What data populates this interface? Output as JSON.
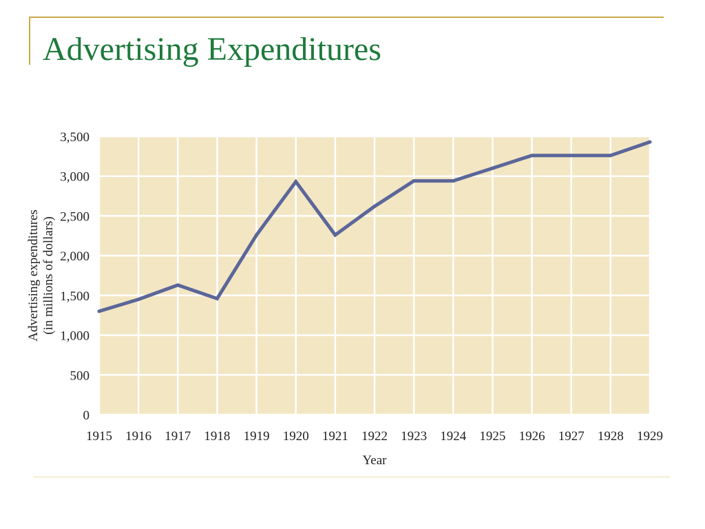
{
  "slide": {
    "title": "Advertising Expenditures"
  },
  "colors": {
    "title": "#1e7a3c",
    "frame": "#c9ab45",
    "plot_background": "#f3e6c3",
    "grid": "#ffffff",
    "line": "#5b6699"
  },
  "chart_data": {
    "type": "line",
    "title": "",
    "xlabel": "Year",
    "ylabel_lines": [
      "Advertising expenditures",
      "(in millions of dollars)"
    ],
    "x": [
      1915,
      1916,
      1917,
      1918,
      1919,
      1920,
      1921,
      1922,
      1923,
      1924,
      1925,
      1926,
      1927,
      1928,
      1929
    ],
    "x_tick_labels": [
      "1915",
      "1916",
      "1917",
      "1918",
      "1919",
      "1920",
      "1921",
      "1922",
      "1923",
      "1924",
      "1925",
      "1926",
      "1927",
      "1928",
      "1929"
    ],
    "y_ticks": [
      0,
      500,
      1000,
      1500,
      2000,
      2500,
      3000,
      3500
    ],
    "y_tick_labels": [
      "0",
      "500",
      "1,000",
      "1,500",
      "2,000",
      "2,500",
      "3,000",
      "3,500"
    ],
    "xlim": [
      1915,
      1929
    ],
    "ylim": [
      0,
      3500
    ],
    "grid": true,
    "legend": "none",
    "series": [
      {
        "values": [
          1300,
          1450,
          1630,
          1460,
          2260,
          2930,
          2260,
          2620,
          2940,
          2940,
          3100,
          3260,
          3260,
          3260,
          3430
        ]
      }
    ]
  }
}
